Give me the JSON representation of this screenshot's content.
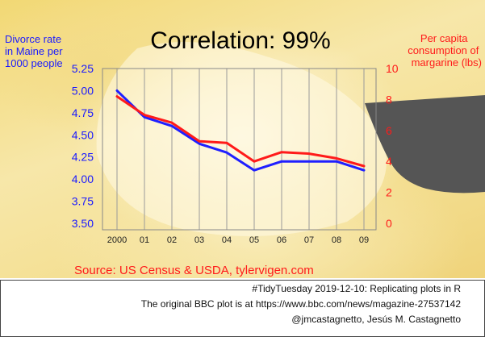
{
  "chart_data": {
    "type": "line",
    "title": "Correlation: 99%",
    "categories": [
      "2000",
      "01",
      "02",
      "03",
      "04",
      "05",
      "06",
      "07",
      "08",
      "09"
    ],
    "left_axis": {
      "label_lines": [
        "Divorce rate",
        "in Maine per",
        "1000 people"
      ],
      "ticks": [
        "5.25",
        "5.00",
        "4.75",
        "4.50",
        "4.25",
        "4.00",
        "3.75",
        "3.50"
      ],
      "range": [
        3.5,
        5.25
      ]
    },
    "right_axis": {
      "label_lines": [
        "Per capita",
        "consumption of",
        "margarine (lbs)"
      ],
      "ticks": [
        "10",
        "8",
        "6",
        "4",
        "2",
        "0"
      ],
      "range": [
        0,
        10
      ]
    },
    "series": [
      {
        "axis": "left",
        "color": "#1f1fff",
        "values": [
          5.0,
          4.7,
          4.6,
          4.4,
          4.3,
          4.1,
          4.2,
          4.2,
          4.2,
          4.1
        ]
      },
      {
        "axis": "right",
        "color": "#ff1a1a",
        "values": [
          8.2,
          7.0,
          6.5,
          5.3,
          5.2,
          4.0,
          4.6,
          4.5,
          4.2,
          3.7
        ]
      }
    ],
    "source": "Source: US Census & USDA, tylervigen.com",
    "grid": true
  },
  "caption": {
    "line1": "#TidyTuesday 2019-12-10: Replicating plots in R",
    "line2": "The original BBC plot is at https://www.bbc.com/news/magazine-27537142",
    "line3": "@jmcastagnetto, Jesús M. Castagnetto"
  }
}
